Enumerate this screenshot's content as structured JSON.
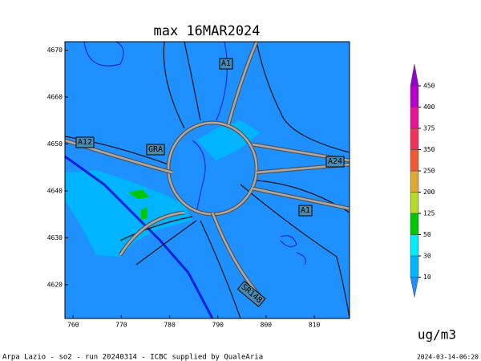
{
  "title": "max 16MAR2024",
  "map": {
    "xlim": [
      758.3,
      817.3
    ],
    "ylim": [
      4612.8,
      4671.8
    ],
    "xticks": [
      760,
      770,
      780,
      790,
      800,
      810
    ],
    "yticks": [
      4620,
      4630,
      4640,
      4650,
      4660,
      4670
    ],
    "road_labels": [
      "A1",
      "A12",
      "GRA",
      "A24",
      "A1",
      "SR148"
    ]
  },
  "colorbar": {
    "levels": [
      10,
      30,
      50,
      125,
      200,
      250,
      350,
      375,
      400,
      450
    ],
    "colors": [
      "#1e90ff",
      "#00b4ff",
      "#00ecff",
      "#00c800",
      "#b4dc28",
      "#dcaa32",
      "#f05a32",
      "#f0325a",
      "#e61496",
      "#b400c8",
      "#9600d2"
    ],
    "unit": "ug/m3"
  },
  "footer": {
    "left": "Arpa Lazio - so2 - run 20240314 - ICBC supplied by QualeAria",
    "right": "2024-03-14-06:20"
  }
}
